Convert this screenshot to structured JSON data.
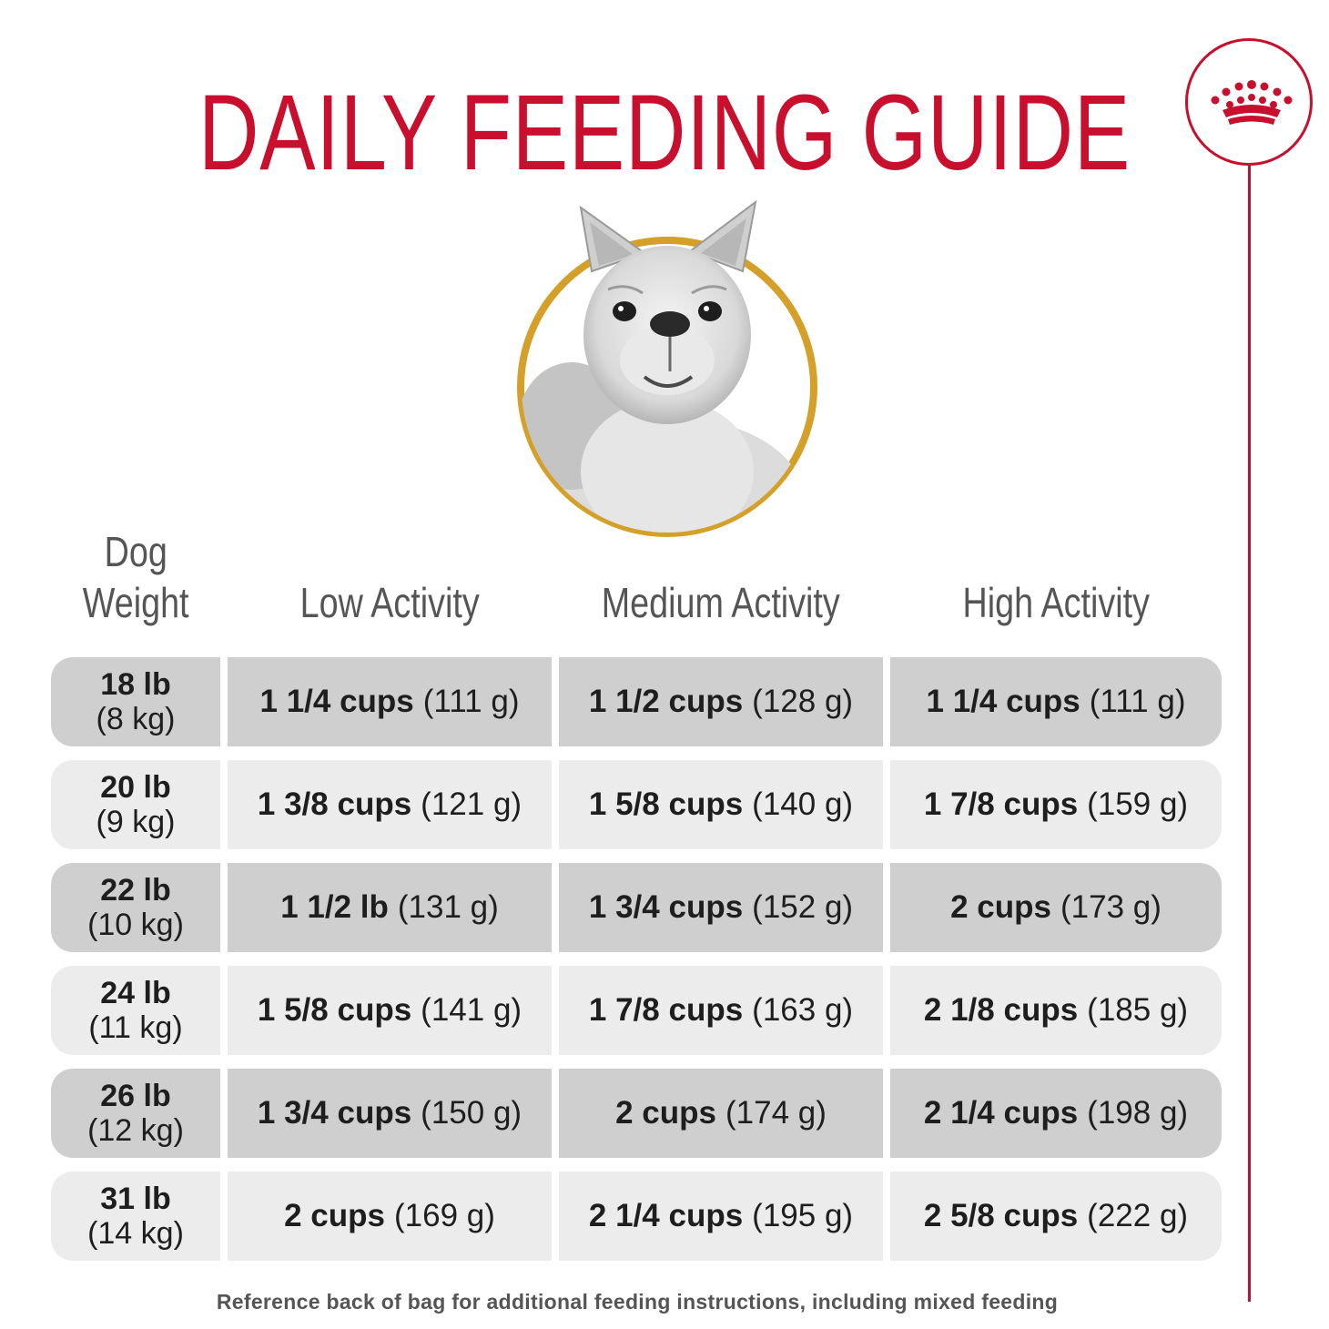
{
  "title": "DAILY FEEDING GUIDE",
  "brand": {
    "logo_icon": "crown-icon",
    "accent_color": "#c8102e"
  },
  "image": {
    "subject": "french-bulldog-icon",
    "ring_color": "#d4a02a"
  },
  "table": {
    "headers": {
      "weight_line1": "Dog",
      "weight_line2": "Weight",
      "low": "Low Activity",
      "medium": "Medium Activity",
      "high": "High Activity"
    },
    "rows": [
      {
        "lb": "18 lb",
        "kg": "(8 kg)",
        "low": {
          "amount": "1 1/4 cups",
          "grams": "(111 g)"
        },
        "medium": {
          "amount": "1 1/2 cups",
          "grams": "(128 g)"
        },
        "high": {
          "amount": "1 1/4 cups",
          "grams": "(111 g)"
        }
      },
      {
        "lb": "20 lb",
        "kg": "(9 kg)",
        "low": {
          "amount": "1 3/8 cups",
          "grams": "(121 g)"
        },
        "medium": {
          "amount": "1 5/8 cups",
          "grams": "(140 g)"
        },
        "high": {
          "amount": "1 7/8 cups",
          "grams": "(159 g)"
        }
      },
      {
        "lb": "22 lb",
        "kg": "(10 kg)",
        "low": {
          "amount": "1 1/2 lb",
          "grams": "(131 g)"
        },
        "medium": {
          "amount": "1 3/4 cups",
          "grams": "(152 g)"
        },
        "high": {
          "amount": "2 cups",
          "grams": "(173 g)"
        }
      },
      {
        "lb": "24 lb",
        "kg": "(11 kg)",
        "low": {
          "amount": "1 5/8 cups",
          "grams": "(141 g)"
        },
        "medium": {
          "amount": "1 7/8 cups",
          "grams": "(163 g)"
        },
        "high": {
          "amount": "2 1/8 cups",
          "grams": "(185 g)"
        }
      },
      {
        "lb": "26 lb",
        "kg": "(12 kg)",
        "low": {
          "amount": "1 3/4 cups",
          "grams": "(150 g)"
        },
        "medium": {
          "amount": "2 cups",
          "grams": "(174 g)"
        },
        "high": {
          "amount": "2 1/4 cups",
          "grams": "(198 g)"
        }
      },
      {
        "lb": "31 lb",
        "kg": "(14 kg)",
        "low": {
          "amount": "2 cups",
          "grams": "(169 g)"
        },
        "medium": {
          "amount": "2 1/4 cups",
          "grams": "(195 g)"
        },
        "high": {
          "amount": "2 5/8 cups",
          "grams": "(222 g)"
        }
      }
    ]
  },
  "footnote": "Reference back of bag for additional feeding instructions, including mixed feeding"
}
